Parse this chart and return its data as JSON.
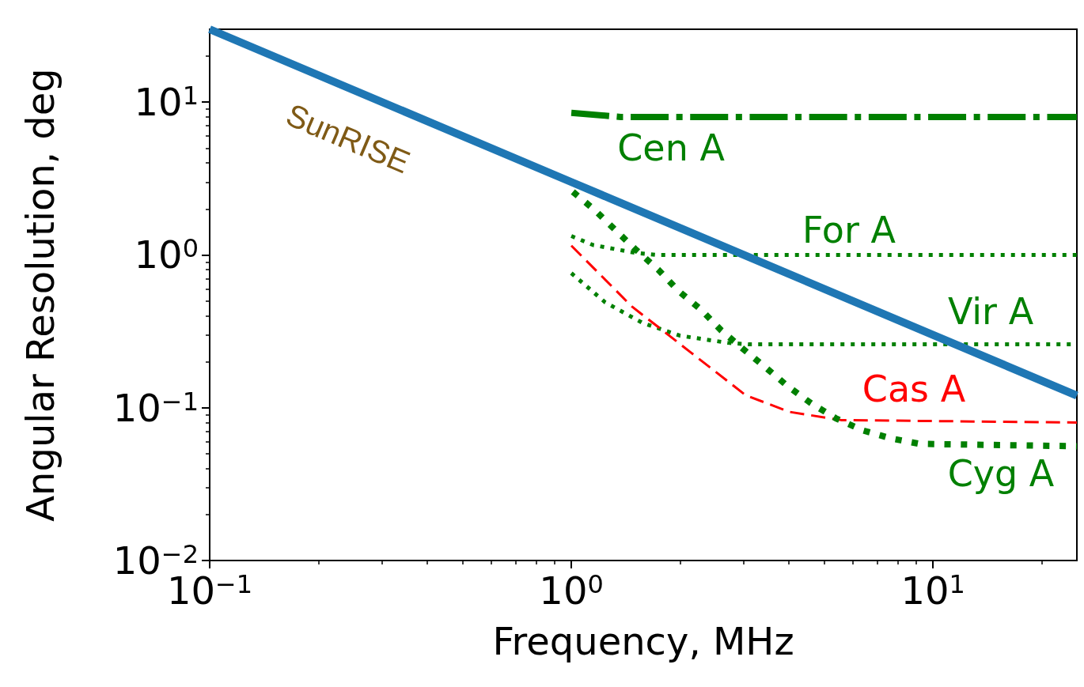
{
  "chart_data": {
    "type": "line",
    "xlabel": "Frequency, MHz",
    "ylabel": "Angular Resolution, deg",
    "log": "xy",
    "grid": false,
    "legend": false,
    "marker": "none",
    "xlim": [
      0.1,
      25
    ],
    "ylim": [
      0.01,
      30
    ],
    "xticks": [
      {
        "value": 0.1,
        "label": "10$^{−1}$"
      },
      {
        "value": 0.2,
        "label": null
      },
      {
        "value": 0.3,
        "label": null
      },
      {
        "value": 0.4,
        "label": null
      },
      {
        "value": 0.5,
        "label": null
      },
      {
        "value": 0.6,
        "label": null
      },
      {
        "value": 0.7,
        "label": null
      },
      {
        "value": 0.8,
        "label": null
      },
      {
        "value": 0.9,
        "label": null
      },
      {
        "value": 1,
        "label": "10$^{0}$"
      },
      {
        "value": 2,
        "label": null
      },
      {
        "value": 3,
        "label": null
      },
      {
        "value": 4,
        "label": null
      },
      {
        "value": 5,
        "label": null
      },
      {
        "value": 6,
        "label": null
      },
      {
        "value": 7,
        "label": null
      },
      {
        "value": 8,
        "label": null
      },
      {
        "value": 9,
        "label": null
      },
      {
        "value": 10,
        "label": "10$^{1}$"
      },
      {
        "value": 20,
        "label": null
      }
    ],
    "yticks": [
      {
        "value": 0.01,
        "label": "10$^{−2}$"
      },
      {
        "value": 0.02,
        "label": null
      },
      {
        "value": 0.03,
        "label": null
      },
      {
        "value": 0.04,
        "label": null
      },
      {
        "value": 0.05,
        "label": null
      },
      {
        "value": 0.06,
        "label": null
      },
      {
        "value": 0.07,
        "label": null
      },
      {
        "value": 0.08,
        "label": null
      },
      {
        "value": 0.09,
        "label": null
      },
      {
        "value": 0.1,
        "label": "10$^{−1}$"
      },
      {
        "value": 0.2,
        "label": null
      },
      {
        "value": 0.3,
        "label": null
      },
      {
        "value": 0.4,
        "label": null
      },
      {
        "value": 0.5,
        "label": null
      },
      {
        "value": 0.6,
        "label": null
      },
      {
        "value": 0.7,
        "label": null
      },
      {
        "value": 0.8,
        "label": null
      },
      {
        "value": 0.9,
        "label": null
      },
      {
        "value": 1,
        "label": "10$^{0}$"
      },
      {
        "value": 2,
        "label": null
      },
      {
        "value": 3,
        "label": null
      },
      {
        "value": 4,
        "label": null
      },
      {
        "value": 5,
        "label": null
      },
      {
        "value": 6,
        "label": null
      },
      {
        "value": 7,
        "label": null
      },
      {
        "value": 8,
        "label": null
      },
      {
        "value": 9,
        "label": null
      },
      {
        "value": 10,
        "label": "10$^{1}$"
      },
      {
        "value": 20,
        "label": null
      }
    ],
    "series": [
      {
        "name": "SunRISE",
        "color": "#1f77b4",
        "line_style": "solid",
        "x": [
          0.1,
          1,
          10,
          25
        ],
        "values": [
          30,
          3,
          0.3,
          0.12
        ]
      },
      {
        "name": "Cen A",
        "color": "#008000",
        "line_style": "dashdot",
        "x": [
          1,
          1.37,
          25
        ],
        "values": [
          8.5,
          8.0,
          8.0
        ]
      },
      {
        "name": "For A",
        "color": "#008000",
        "line_style": "dotted",
        "x": [
          1,
          1.15,
          1.51,
          1.72,
          25
        ],
        "values": [
          1.33,
          1.16,
          1.03,
          1.0,
          1.0
        ]
      },
      {
        "name": "Vir A",
        "color": "#008000",
        "line_style": "dotted",
        "x": [
          1,
          1.24,
          1.57,
          2.0,
          2.71,
          3.09,
          25
        ],
        "values": [
          0.76,
          0.49,
          0.36,
          0.296,
          0.266,
          0.26,
          0.26
        ]
      },
      {
        "name": "Cas A",
        "color": "#ff0000",
        "line_style": "dashed",
        "x": [
          1,
          1.47,
          2.14,
          3.03,
          4.0,
          5.57,
          25
        ],
        "values": [
          1.15,
          0.46,
          0.23,
          0.121,
          0.094,
          0.083,
          0.08
        ]
      },
      {
        "name": "Cyg A",
        "color": "#008000",
        "line_style": "dotted",
        "x": [
          1.01,
          1.16,
          1.33,
          1.51,
          1.74,
          1.98,
          2.28,
          2.6,
          3.0,
          3.45,
          3.97,
          4.6,
          5.4,
          6.4,
          7.65,
          9.2,
          25
        ],
        "values": [
          2.59,
          1.97,
          1.44,
          1.08,
          0.8,
          0.58,
          0.44,
          0.32,
          0.24,
          0.183,
          0.138,
          0.107,
          0.085,
          0.071,
          0.063,
          0.058,
          0.056
        ]
      }
    ]
  }
}
